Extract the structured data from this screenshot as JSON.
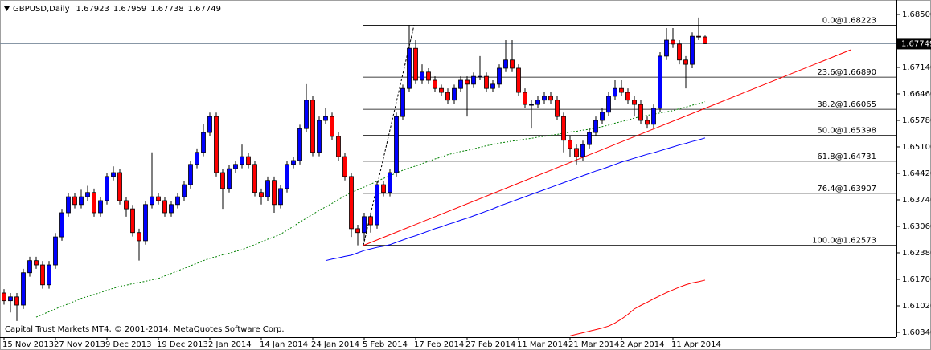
{
  "chart_data": {
    "type": "candlestick",
    "title": "GBPUSD,Daily",
    "footer": "Capital Trust Markets MT4, © 2001-2014, MetaQuotes Software Corp.",
    "up_color": "#0000ff",
    "down_color": "#ff0000",
    "categories": [
      "15 Nov 2013",
      null,
      null,
      null,
      null,
      null,
      null,
      null,
      "27 Nov 2013",
      null,
      null,
      null,
      null,
      null,
      null,
      null,
      "9 Dec 2013",
      null,
      null,
      null,
      null,
      null,
      null,
      null,
      "19 Dec 2013",
      null,
      null,
      null,
      null,
      null,
      null,
      null,
      "2 Jan 2014",
      null,
      null,
      null,
      null,
      null,
      null,
      null,
      "14 Jan 2014",
      null,
      null,
      null,
      null,
      null,
      null,
      null,
      "24 Jan 2014",
      null,
      null,
      null,
      null,
      null,
      null,
      null,
      "5 Feb 2014",
      null,
      null,
      null,
      null,
      null,
      null,
      null,
      "17 Feb 2014",
      null,
      null,
      null,
      null,
      null,
      null,
      null,
      "27 Feb 2014",
      null,
      null,
      null,
      null,
      null,
      null,
      null,
      "11 Mar 2014",
      null,
      null,
      null,
      null,
      null,
      null,
      null,
      "21 Mar 2014",
      null,
      null,
      null,
      null,
      null,
      null,
      null,
      "2 Apr 2014",
      null,
      null,
      null,
      null,
      null,
      null,
      null,
      "11 Apr 2014",
      null,
      null,
      null,
      null,
      null
    ],
    "open": [
      1.6135,
      1.6115,
      1.6125,
      1.6104,
      1.6187,
      1.6218,
      1.6207,
      1.6156,
      1.6207,
      1.6279,
      1.6341,
      1.6382,
      1.6362,
      1.6382,
      1.6393,
      1.6341,
      1.6372,
      1.6434,
      1.6444,
      1.6372,
      1.6351,
      1.629,
      1.6269,
      1.6362,
      1.6382,
      1.6372,
      1.6341,
      1.6362,
      1.6382,
      1.6413,
      1.6465,
      1.6496,
      1.6547,
      1.6588,
      1.6444,
      1.6403,
      1.6454,
      1.6465,
      1.6485,
      1.6465,
      1.6393,
      1.6382,
      1.6424,
      1.6362,
      1.6403,
      1.6465,
      1.6475,
      1.6557,
      1.663,
      1.6496,
      1.6578,
      1.6588,
      1.6537,
      1.6485,
      1.6434,
      1.63,
      1.629,
      1.6331,
      1.631,
      1.6413,
      1.6393,
      1.6444,
      1.6588,
      1.666,
      1.6763,
      1.6681,
      1.6702,
      1.6681,
      1.666,
      1.665,
      1.663,
      1.666,
      1.6681,
      1.6671,
      1.6691,
      1.6691,
      1.666,
      1.6671,
      1.6712,
      1.6733,
      1.6712,
      1.665,
      1.6619,
      1.6619,
      1.663,
      1.664,
      1.663,
      1.6588,
      1.6527,
      1.6506,
      1.6485,
      1.6516,
      1.6547,
      1.6578,
      1.6599,
      1.664,
      1.666,
      1.665,
      1.663,
      1.6619,
      1.6578,
      1.6568,
      1.6609,
      1.6743,
      1.6784,
      1.6774,
      1.6733,
      1.6722,
      1.6794,
      1.67923
    ],
    "high": [
      1.6145,
      1.6135,
      1.6135,
      1.6197,
      1.6228,
      1.6228,
      1.6217,
      1.6217,
      1.6289,
      1.6351,
      1.6392,
      1.6392,
      1.64,
      1.641,
      1.6403,
      1.6382,
      1.6444,
      1.646,
      1.6454,
      1.6382,
      1.6361,
      1.63,
      1.6372,
      1.6496,
      1.6392,
      1.6382,
      1.6372,
      1.6392,
      1.6423,
      1.6475,
      1.6506,
      1.6568,
      1.6598,
      1.6598,
      1.6454,
      1.6464,
      1.6475,
      1.6516,
      1.6495,
      1.6475,
      1.6403,
      1.6434,
      1.6434,
      1.6413,
      1.6475,
      1.6485,
      1.6567,
      1.6671,
      1.664,
      1.6588,
      1.6609,
      1.6598,
      1.6547,
      1.6495,
      1.6444,
      1.631,
      1.6341,
      1.6341,
      1.6423,
      1.6423,
      1.6454,
      1.6598,
      1.667,
      1.68223,
      1.6784,
      1.6722,
      1.6712,
      1.6691,
      1.667,
      1.666,
      1.667,
      1.6691,
      1.6691,
      1.6701,
      1.6743,
      1.6701,
      1.6681,
      1.6722,
      1.6784,
      1.6784,
      1.6722,
      1.666,
      1.663,
      1.664,
      1.665,
      1.665,
      1.664,
      1.6598,
      1.6537,
      1.6516,
      1.6526,
      1.6557,
      1.6588,
      1.6609,
      1.665,
      1.6681,
      1.6681,
      1.666,
      1.664,
      1.663,
      1.6588,
      1.6619,
      1.6753,
      1.6815,
      1.6815,
      1.6784,
      1.6743,
      1.6804,
      1.6842,
      1.67959
    ],
    "low": [
      1.6105,
      1.6085,
      1.6063,
      1.6094,
      1.6177,
      1.6197,
      1.6146,
      1.6146,
      1.6197,
      1.6269,
      1.6331,
      1.6352,
      1.6352,
      1.6372,
      1.6331,
      1.6331,
      1.6362,
      1.6424,
      1.6362,
      1.6331,
      1.628,
      1.6218,
      1.6259,
      1.6352,
      1.6362,
      1.6331,
      1.6331,
      1.6352,
      1.6372,
      1.6403,
      1.6455,
      1.6486,
      1.6537,
      1.6434,
      1.6351,
      1.6393,
      1.6444,
      1.6455,
      1.6455,
      1.6383,
      1.6362,
      1.6372,
      1.6341,
      1.6352,
      1.6393,
      1.6455,
      1.6465,
      1.6547,
      1.6486,
      1.6486,
      1.6568,
      1.6527,
      1.6475,
      1.6424,
      1.6279,
      1.62573,
      1.6269,
      1.629,
      1.63,
      1.6383,
      1.6383,
      1.6434,
      1.6578,
      1.665,
      1.6671,
      1.6671,
      1.6671,
      1.665,
      1.664,
      1.662,
      1.662,
      1.665,
      1.6588,
      1.6661,
      1.6681,
      1.665,
      1.665,
      1.6661,
      1.6702,
      1.6702,
      1.664,
      1.6609,
      1.6557,
      1.6609,
      1.662,
      1.662,
      1.6578,
      1.6496,
      1.6485,
      1.6465,
      1.6475,
      1.6506,
      1.6537,
      1.6568,
      1.6589,
      1.663,
      1.664,
      1.662,
      1.6588,
      1.6568,
      1.6557,
      1.6557,
      1.6599,
      1.6733,
      1.6764,
      1.6722,
      1.666,
      1.6712,
      1.6784,
      1.67738
    ],
    "close": [
      1.6115,
      1.6125,
      1.6104,
      1.6187,
      1.6218,
      1.6207,
      1.6156,
      1.6207,
      1.6279,
      1.6341,
      1.6382,
      1.6362,
      1.6382,
      1.6393,
      1.6341,
      1.6372,
      1.6434,
      1.6444,
      1.6372,
      1.6351,
      1.629,
      1.6269,
      1.6362,
      1.6382,
      1.6372,
      1.6341,
      1.6362,
      1.6382,
      1.6413,
      1.6465,
      1.6496,
      1.6547,
      1.6588,
      1.6444,
      1.6403,
      1.6454,
      1.6465,
      1.6485,
      1.6465,
      1.6393,
      1.6382,
      1.6424,
      1.6362,
      1.6403,
      1.6465,
      1.6475,
      1.6557,
      1.663,
      1.6496,
      1.6578,
      1.6588,
      1.6537,
      1.6485,
      1.6434,
      1.63,
      1.629,
      1.6331,
      1.631,
      1.6413,
      1.6393,
      1.6444,
      1.6588,
      1.666,
      1.6763,
      1.6681,
      1.6702,
      1.6681,
      1.666,
      1.665,
      1.663,
      1.666,
      1.6681,
      1.6671,
      1.6691,
      1.6691,
      1.666,
      1.6671,
      1.6712,
      1.6733,
      1.6712,
      1.665,
      1.6619,
      1.6619,
      1.663,
      1.664,
      1.663,
      1.6588,
      1.6527,
      1.6506,
      1.6485,
      1.6516,
      1.6547,
      1.6578,
      1.6599,
      1.664,
      1.666,
      1.665,
      1.663,
      1.6619,
      1.6578,
      1.6568,
      1.6609,
      1.6743,
      1.6784,
      1.6774,
      1.6733,
      1.6722,
      1.6794,
      1.67923,
      1.67749
    ],
    "lines": [
      {
        "color": "#008000",
        "dash": true,
        "values": [
          null,
          null,
          null,
          null,
          null,
          1.6073,
          1.608,
          1.6087,
          1.6094,
          1.6101,
          1.6107,
          1.6114,
          1.6121,
          1.6126,
          1.6131,
          1.6136,
          1.6142,
          1.6147,
          1.6152,
          1.6155,
          1.6159,
          1.6162,
          1.6165,
          1.6169,
          1.6172,
          1.6179,
          1.6185,
          1.6192,
          1.6198,
          1.6205,
          1.6211,
          1.6218,
          1.6224,
          1.6228,
          1.6233,
          1.6237,
          1.6242,
          1.6246,
          1.6253,
          1.6259,
          1.6266,
          1.6273,
          1.6279,
          1.6286,
          1.6296,
          1.6306,
          1.6317,
          1.6327,
          1.6337,
          1.6347,
          1.6356,
          1.6365,
          1.6375,
          1.6384,
          1.6393,
          1.64,
          1.6407,
          1.6414,
          1.6422,
          1.6429,
          1.6436,
          1.6443,
          1.645,
          1.6456,
          1.6461,
          1.6467,
          1.6473,
          1.6479,
          1.6484,
          1.649,
          1.6494,
          1.6498,
          1.6501,
          1.6505,
          1.6509,
          1.6513,
          1.6516,
          1.652,
          1.6522,
          1.6525,
          1.6527,
          1.653,
          1.6532,
          1.6535,
          1.6537,
          1.654,
          1.6542,
          1.6545,
          1.6548,
          1.655,
          1.6553,
          1.6555,
          1.6558,
          1.6562,
          1.6566,
          1.6571,
          1.6575,
          1.6579,
          1.6584,
          1.6588,
          1.6591,
          1.6594,
          1.6597,
          1.66,
          1.6603,
          1.6608,
          1.6612,
          1.6617,
          1.6621,
          1.6626
        ]
      },
      {
        "color": "#0000ff",
        "dash": false,
        "values": [
          null,
          null,
          null,
          null,
          null,
          null,
          null,
          null,
          null,
          null,
          null,
          null,
          null,
          null,
          null,
          null,
          null,
          null,
          null,
          null,
          null,
          null,
          null,
          null,
          null,
          null,
          null,
          null,
          null,
          null,
          null,
          null,
          null,
          null,
          null,
          null,
          null,
          null,
          null,
          null,
          null,
          null,
          null,
          null,
          null,
          null,
          null,
          null,
          null,
          null,
          1.6218,
          1.6222,
          1.6225,
          1.6229,
          1.6232,
          1.6238,
          1.6244,
          1.6248,
          1.6252,
          1.6255,
          1.6259,
          1.6265,
          1.6271,
          1.6277,
          1.6282,
          1.6288,
          1.6294,
          1.63,
          1.6305,
          1.6311,
          1.6316,
          1.6322,
          1.6327,
          1.6333,
          1.6339,
          1.6345,
          1.6351,
          1.6358,
          1.6364,
          1.637,
          1.6376,
          1.6382,
          1.6388,
          1.6394,
          1.64,
          1.6406,
          1.6412,
          1.6418,
          1.6424,
          1.643,
          1.6436,
          1.6442,
          1.6448,
          1.6453,
          1.6459,
          1.6465,
          1.6471,
          1.6476,
          1.6481,
          1.6486,
          1.6491,
          1.6495,
          1.65,
          1.6505,
          1.651,
          1.6515,
          1.6519,
          1.6524,
          1.6528,
          1.6533
        ]
      },
      {
        "color": "#ff0000",
        "dash": false,
        "values": [
          null,
          null,
          null,
          null,
          null,
          null,
          null,
          null,
          null,
          null,
          null,
          null,
          null,
          null,
          null,
          null,
          null,
          null,
          null,
          null,
          null,
          null,
          null,
          null,
          null,
          null,
          null,
          null,
          null,
          null,
          null,
          null,
          null,
          null,
          null,
          null,
          null,
          null,
          null,
          null,
          null,
          null,
          null,
          null,
          null,
          null,
          null,
          null,
          null,
          null,
          null,
          null,
          null,
          null,
          null,
          null,
          null,
          null,
          null,
          null,
          null,
          null,
          null,
          null,
          null,
          null,
          null,
          null,
          null,
          null,
          null,
          null,
          null,
          null,
          null,
          null,
          null,
          null,
          null,
          null,
          null,
          null,
          null,
          null,
          null,
          null,
          null,
          null,
          1.6025,
          1.6029,
          1.6033,
          1.6037,
          1.6041,
          1.6045,
          1.605,
          1.6058,
          1.6068,
          1.608,
          1.6094,
          1.6103,
          1.6111,
          1.612,
          1.6128,
          1.6136,
          1.6143,
          1.615,
          1.6156,
          1.6161,
          1.6164,
          1.6168
        ]
      }
    ],
    "trendline": {
      "color": "#ff0000",
      "values": [
        1.6257,
        1.6759
      ]
    },
    "fibonacci": {
      "levels": [
        {
          "value": 1.68223,
          "label": "0.0@1.68223"
        },
        {
          "value": 1.6689,
          "label": "23.6@1.66890"
        },
        {
          "value": 1.66065,
          "label": "38.2@1.66065"
        },
        {
          "value": 1.65398,
          "label": "50.0@1.65398"
        },
        {
          "value": 1.64731,
          "label": "61.8@1.64731"
        },
        {
          "value": 1.63907,
          "label": "76.4@1.63907"
        },
        {
          "value": 1.62573,
          "label": "100.0@1.62573"
        }
      ]
    },
    "ylim": [
      1.60216,
      1.68788
    ],
    "yticks": [
      {
        "value": 1.685,
        "label": "1.68500"
      },
      {
        "value": 1.6714,
        "label": "1.67140"
      },
      {
        "value": 1.6646,
        "label": "1.66460"
      },
      {
        "value": 1.6578,
        "label": "1.65780"
      },
      {
        "value": 1.651,
        "label": "1.65100"
      },
      {
        "value": 1.6442,
        "label": "1.64420"
      },
      {
        "value": 1.6374,
        "label": "1.63740"
      },
      {
        "value": 1.6306,
        "label": "1.63060"
      },
      {
        "value": 1.6238,
        "label": "1.62380"
      },
      {
        "value": 1.617,
        "label": "1.61700"
      },
      {
        "value": 1.6102,
        "label": "1.61020"
      },
      {
        "value": 1.6034,
        "label": "1.60340"
      }
    ]
  }
}
